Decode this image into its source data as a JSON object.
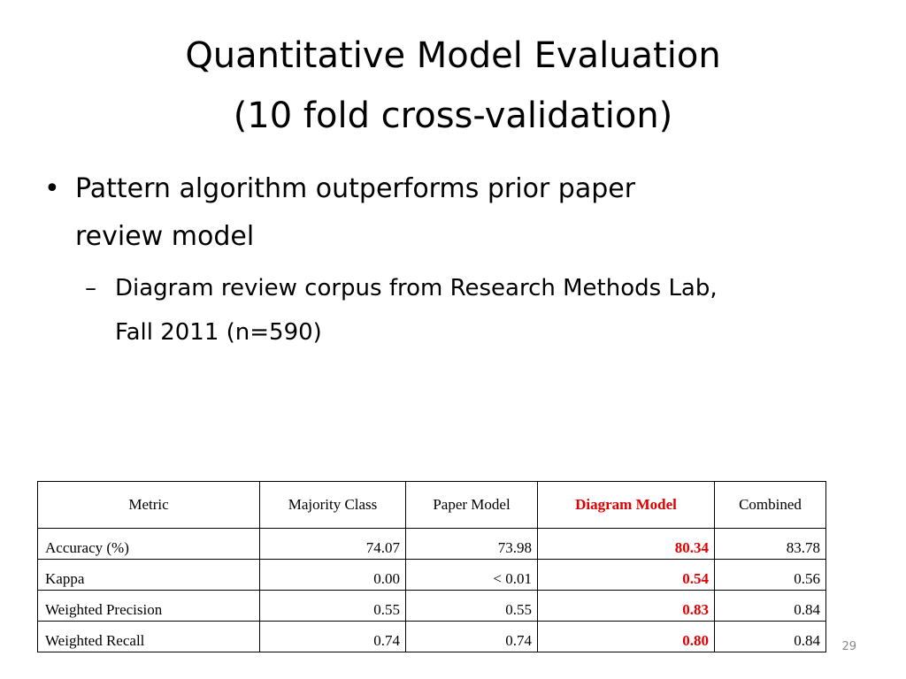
{
  "title": {
    "line1": "Quantitative Model Evaluation",
    "line2": "(10 fold cross-validation)"
  },
  "bullets": [
    {
      "marker": "•",
      "lines": [
        "Pattern algorithm outperforms prior paper",
        "review model"
      ]
    },
    {
      "marker": "–",
      "lines": [
        "Diagram review corpus from Research Methods Lab,",
        "Fall 2011 (n=590)"
      ]
    }
  ],
  "table": {
    "highlight_color": "#e00000",
    "headers": [
      "Metric",
      "Majority Class",
      "Paper Model",
      "Diagram Model",
      "Combined"
    ],
    "rows": [
      [
        "Accuracy (%)",
        "74.07",
        "73.98",
        "80.34",
        "83.78"
      ],
      [
        "Kappa",
        "0.00",
        "< 0.01",
        "0.54",
        "0.56"
      ],
      [
        "Weighted Precision",
        "0.55",
        "0.55",
        "0.83",
        "0.84"
      ],
      [
        "Weighted Recall",
        "0.74",
        "0.74",
        "0.80",
        "0.84"
      ]
    ]
  },
  "page_number": "29"
}
